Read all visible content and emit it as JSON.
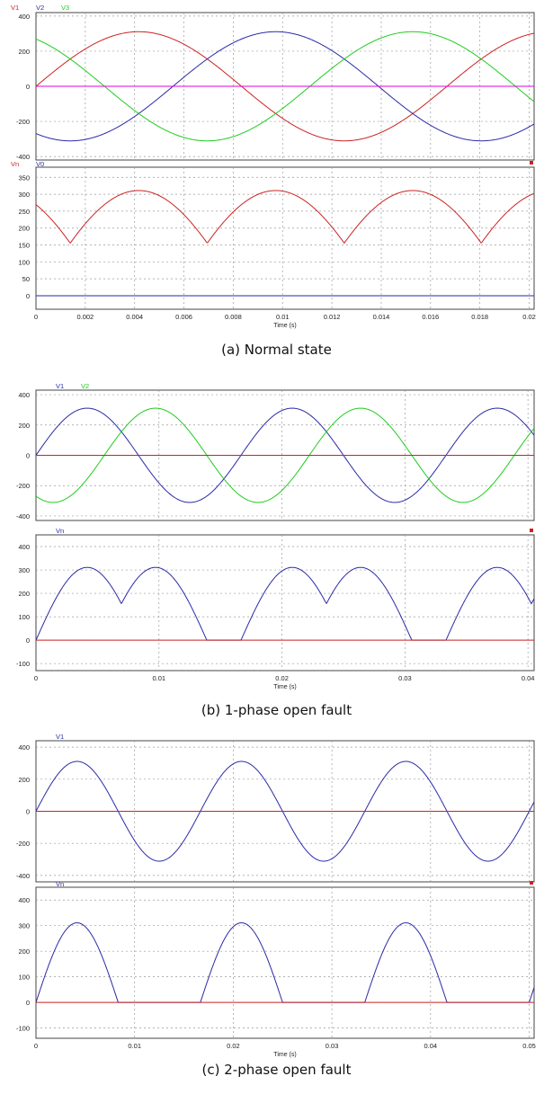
{
  "captions": [
    "(a) Normal state",
    "(b) 1-phase open fault",
    "(c) 2-phase open fault"
  ],
  "colors": {
    "red": "#cc2222",
    "blue": "#2a2aa8",
    "green": "#1fcc1f",
    "magenta": "#e000e0"
  },
  "chart_data": [
    {
      "type": "line",
      "panel": "a-top",
      "legend": [
        "V1",
        "V2",
        "V3"
      ],
      "xlim": [
        0,
        0.0202
      ],
      "ylim": [
        -420,
        420
      ],
      "yticks": [
        400,
        200,
        0,
        -200,
        -400
      ],
      "ytick_labels": [
        "400",
        "200",
        "0",
        "-200",
        "-400"
      ],
      "series": [
        {
          "name": "V1",
          "color": "#cc2222",
          "fn": "sine",
          "amp": 311,
          "freq": 60,
          "phase_deg": 0
        },
        {
          "name": "V2",
          "color": "#2a2aa8",
          "fn": "sine",
          "amp": 311,
          "freq": 60,
          "phase_deg": -120
        },
        {
          "name": "V3",
          "color": "#1fcc1f",
          "fn": "sine",
          "amp": 311,
          "freq": 60,
          "phase_deg": 120
        },
        {
          "color": "#e000e0",
          "fn": "const",
          "value": 0
        }
      ]
    },
    {
      "type": "line",
      "panel": "a-bottom",
      "legend": [
        "Vn",
        "V0"
      ],
      "xlim": [
        0,
        0.0202
      ],
      "ylim": [
        -40,
        380
      ],
      "yticks": [
        350,
        300,
        250,
        200,
        150,
        100,
        50,
        0
      ],
      "ytick_labels": [
        "350",
        "300",
        "250",
        "200",
        "150",
        "100",
        "50",
        "0"
      ],
      "xticks": [
        0,
        0.002,
        0.004,
        0.006,
        0.008,
        0.01,
        0.012,
        0.014,
        0.016,
        0.018,
        0.02
      ],
      "xtick_labels": [
        "0",
        "0.002",
        "0.004",
        "0.006",
        "0.008",
        "0.01",
        "0.012",
        "0.014",
        "0.016",
        "0.018",
        "0.02"
      ],
      "xlabel": "Time (s)",
      "series": [
        {
          "name": "Vn",
          "color": "#cc2222",
          "fn": "rect3",
          "amp": 311,
          "freq": 60
        },
        {
          "name": "V0",
          "color": "#2a2aa8",
          "fn": "const",
          "value": 0
        }
      ]
    },
    {
      "type": "line",
      "panel": "b-top",
      "legend": [
        "V1",
        "V2"
      ],
      "xlim": [
        0,
        0.0405
      ],
      "ylim": [
        -430,
        430
      ],
      "yticks": [
        400,
        200,
        0,
        -200,
        -400
      ],
      "ytick_labels": [
        "400",
        "200",
        "0",
        "-200",
        "-400"
      ],
      "series": [
        {
          "name": "V1",
          "color": "#2a2aa8",
          "fn": "sine",
          "amp": 311,
          "freq": 60,
          "phase_deg": 0
        },
        {
          "name": "V2",
          "color": "#1fcc1f",
          "fn": "sine",
          "amp": 311,
          "freq": 60,
          "phase_deg": -120
        },
        {
          "color": "#cc2222",
          "fn": "const",
          "value": 0
        }
      ]
    },
    {
      "type": "line",
      "panel": "b-bottom",
      "legend": [
        "Vn"
      ],
      "xlim": [
        0,
        0.0405
      ],
      "ylim": [
        -130,
        450
      ],
      "yticks": [
        400,
        300,
        200,
        100,
        0,
        -100
      ],
      "ytick_labels": [
        "400",
        "300",
        "200",
        "100",
        "0",
        "-100"
      ],
      "xticks": [
        0,
        0.01,
        0.02,
        0.03,
        0.04
      ],
      "xtick_labels": [
        "0",
        "0.01",
        "0.02",
        "0.03",
        "0.04"
      ],
      "xlabel": "Time (s)",
      "series": [
        {
          "name": "Vn",
          "color": "#2a2aa8",
          "fn": "rect2",
          "amp": 311,
          "freq": 60
        },
        {
          "color": "#cc2222",
          "fn": "const",
          "value": 0
        }
      ]
    },
    {
      "type": "line",
      "panel": "c-top",
      "legend": [
        "V1"
      ],
      "xlim": [
        0,
        0.0505
      ],
      "ylim": [
        -440,
        440
      ],
      "yticks": [
        400,
        200,
        0,
        -200,
        -400
      ],
      "ytick_labels": [
        "400",
        "200",
        "0",
        "-200",
        "-400"
      ],
      "series": [
        {
          "name": "V1",
          "color": "#2a2aa8",
          "fn": "sine",
          "amp": 311,
          "freq": 60,
          "phase_deg": 0
        },
        {
          "color": "#cc2222",
          "fn": "const",
          "value": 0
        }
      ]
    },
    {
      "type": "line",
      "panel": "c-bottom",
      "legend": [
        "Vn"
      ],
      "xlim": [
        0,
        0.0505
      ],
      "ylim": [
        -140,
        450
      ],
      "yticks": [
        400,
        300,
        200,
        100,
        0,
        -100
      ],
      "ytick_labels": [
        "400",
        "300",
        "200",
        "100",
        "0",
        "-100"
      ],
      "xticks": [
        0,
        0.01,
        0.02,
        0.03,
        0.04,
        0.05
      ],
      "xtick_labels": [
        "0",
        "0.01",
        "0.02",
        "0.03",
        "0.04",
        "0.05"
      ],
      "xlabel": "Time (s)",
      "series": [
        {
          "name": "Vn",
          "color": "#2a2aa8",
          "fn": "rect1",
          "amp": 311,
          "freq": 60
        },
        {
          "color": "#cc2222",
          "fn": "const",
          "value": 0
        }
      ]
    }
  ]
}
